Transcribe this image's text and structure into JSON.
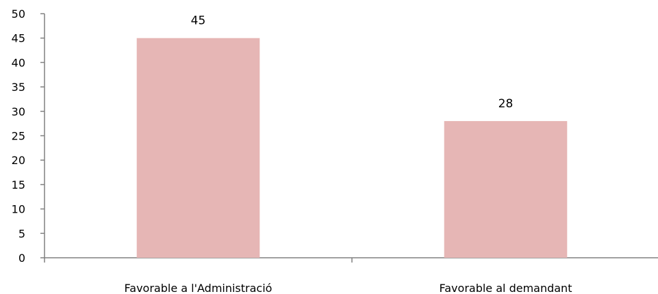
{
  "chart_data": {
    "type": "bar",
    "categories": [
      "Favorable a l'Administració",
      "Favorable al demandant"
    ],
    "values": [
      45,
      28
    ],
    "data_labels": [
      "45",
      "28"
    ],
    "title": "",
    "xlabel": "",
    "ylabel": "",
    "ylim": [
      0,
      50
    ],
    "yticks": [
      0,
      5,
      10,
      15,
      20,
      25,
      30,
      35,
      40,
      45,
      50
    ],
    "ytick_labels": [
      "0",
      "5",
      "10",
      "15",
      "20",
      "25",
      "30",
      "35",
      "40",
      "45",
      "50"
    ],
    "grid": false,
    "legend": "none",
    "colors": {
      "bar": "#e6b6b5",
      "axis": "#808080",
      "text": "#000000"
    }
  }
}
